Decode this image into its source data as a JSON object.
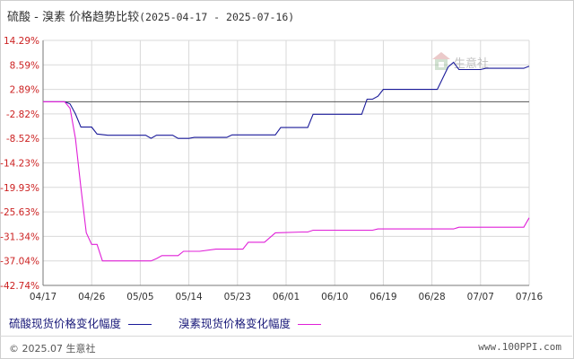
{
  "header": {
    "title": "硫酸 - 溴素 价格趋势比较",
    "date_range": "(2025-04-17 - 2025-07-16)"
  },
  "watermark": {
    "text": "生意社"
  },
  "footer": {
    "copyright": "© 2025.07 生意社",
    "website": "www.100PPI.com"
  },
  "colors": {
    "series_1": "#1a1a99",
    "series_2": "#e020d8",
    "grid": "#d9d9d9",
    "axis": "#777777",
    "tick_text": "#cc2222",
    "legend_text": "#1a1a7a"
  },
  "chart_data": {
    "type": "line",
    "title": "硫酸 - 溴素 价格趋势比较(2025-04-17 - 2025-07-16)",
    "xlabel": "",
    "ylabel": "",
    "ylim": [
      -42.74,
      14.29
    ],
    "x_range": [
      "04/17",
      "07/16"
    ],
    "y_ticks": [
      "14.29%",
      "8.59%",
      "2.89%",
      "-2.82%",
      "-8.52%",
      "-14.23%",
      "-19.93%",
      "-25.63%",
      "-31.34%",
      "-37.04%",
      "-42.74%"
    ],
    "x_ticks": [
      "04/17",
      "04/26",
      "05/05",
      "05/14",
      "05/23",
      "06/01",
      "06/10",
      "06/19",
      "06/28",
      "07/07",
      "07/16"
    ],
    "grid": true,
    "legend_position": "bottom",
    "series": [
      {
        "name": "硫酸现货价格变化幅度",
        "points": [
          [
            "04/17",
            0.0
          ],
          [
            "04/21",
            0.0
          ],
          [
            "04/22",
            -0.5
          ],
          [
            "04/23",
            -2.82
          ],
          [
            "04/24",
            -5.9
          ],
          [
            "04/26",
            -5.9
          ],
          [
            "04/27",
            -7.5
          ],
          [
            "04/29",
            -7.8
          ],
          [
            "05/03",
            -7.8
          ],
          [
            "05/06",
            -7.8
          ],
          [
            "05/07",
            -8.5
          ],
          [
            "05/08",
            -7.8
          ],
          [
            "05/11",
            -7.8
          ],
          [
            "05/12",
            -8.52
          ],
          [
            "05/14",
            -8.52
          ],
          [
            "05/15",
            -8.3
          ],
          [
            "05/21",
            -8.3
          ],
          [
            "05/22",
            -7.7
          ],
          [
            "05/30",
            -7.7
          ],
          [
            "05/31",
            -6.0
          ],
          [
            "06/05",
            -6.0
          ],
          [
            "06/06",
            -2.9
          ],
          [
            "06/15",
            -2.9
          ],
          [
            "06/16",
            0.6
          ],
          [
            "06/17",
            0.6
          ],
          [
            "06/18",
            1.3
          ],
          [
            "06/19",
            2.89
          ],
          [
            "06/29",
            2.89
          ],
          [
            "07/01",
            8.1
          ],
          [
            "07/02",
            9.2
          ],
          [
            "07/03",
            7.5
          ],
          [
            "07/07",
            7.5
          ],
          [
            "07/08",
            7.8
          ],
          [
            "07/15",
            7.8
          ],
          [
            "07/16",
            8.3
          ]
        ]
      },
      {
        "name": "溴素现货价格变化幅度",
        "points": [
          [
            "04/17",
            0.0
          ],
          [
            "04/21",
            0.0
          ],
          [
            "04/22",
            -1.5
          ],
          [
            "04/23",
            -8.5
          ],
          [
            "04/24",
            -20.0
          ],
          [
            "04/25",
            -30.5
          ],
          [
            "04/26",
            -33.2
          ],
          [
            "04/27",
            -33.2
          ],
          [
            "04/28",
            -37.04
          ],
          [
            "05/07",
            -37.04
          ],
          [
            "05/08",
            -36.5
          ],
          [
            "05/09",
            -35.8
          ],
          [
            "05/12",
            -35.8
          ],
          [
            "05/13",
            -34.8
          ],
          [
            "05/16",
            -34.8
          ],
          [
            "05/19",
            -34.3
          ],
          [
            "05/24",
            -34.3
          ],
          [
            "05/25",
            -32.7
          ],
          [
            "05/28",
            -32.7
          ],
          [
            "05/30",
            -30.5
          ],
          [
            "06/04",
            -30.3
          ],
          [
            "06/05",
            -30.3
          ],
          [
            "06/06",
            -29.9
          ],
          [
            "06/17",
            -29.9
          ],
          [
            "06/18",
            -29.6
          ],
          [
            "07/02",
            -29.6
          ],
          [
            "07/03",
            -29.2
          ],
          [
            "07/15",
            -29.2
          ],
          [
            "07/16",
            -27.0
          ]
        ]
      }
    ]
  }
}
